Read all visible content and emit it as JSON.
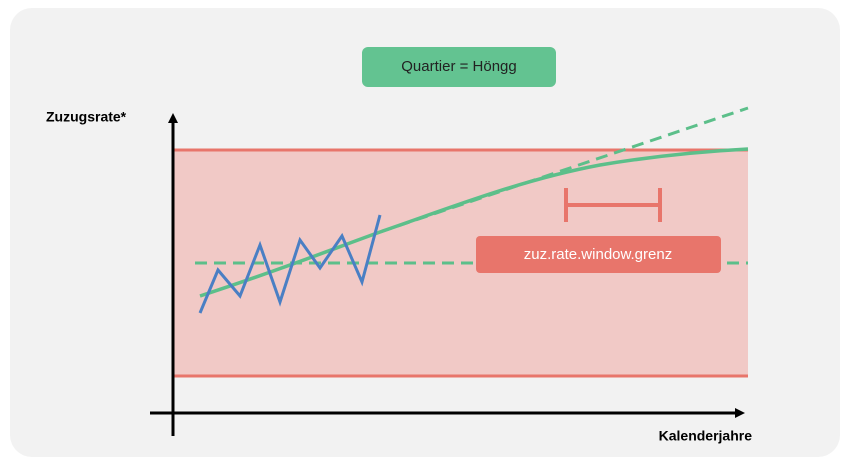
{
  "header": {
    "title": "Quartier = Höngg"
  },
  "axes": {
    "y_label": "Zuzugsrate*",
    "x_label": "Kalenderjahre"
  },
  "annotation": {
    "label": "zuz.rate.window.grenz"
  }
}
